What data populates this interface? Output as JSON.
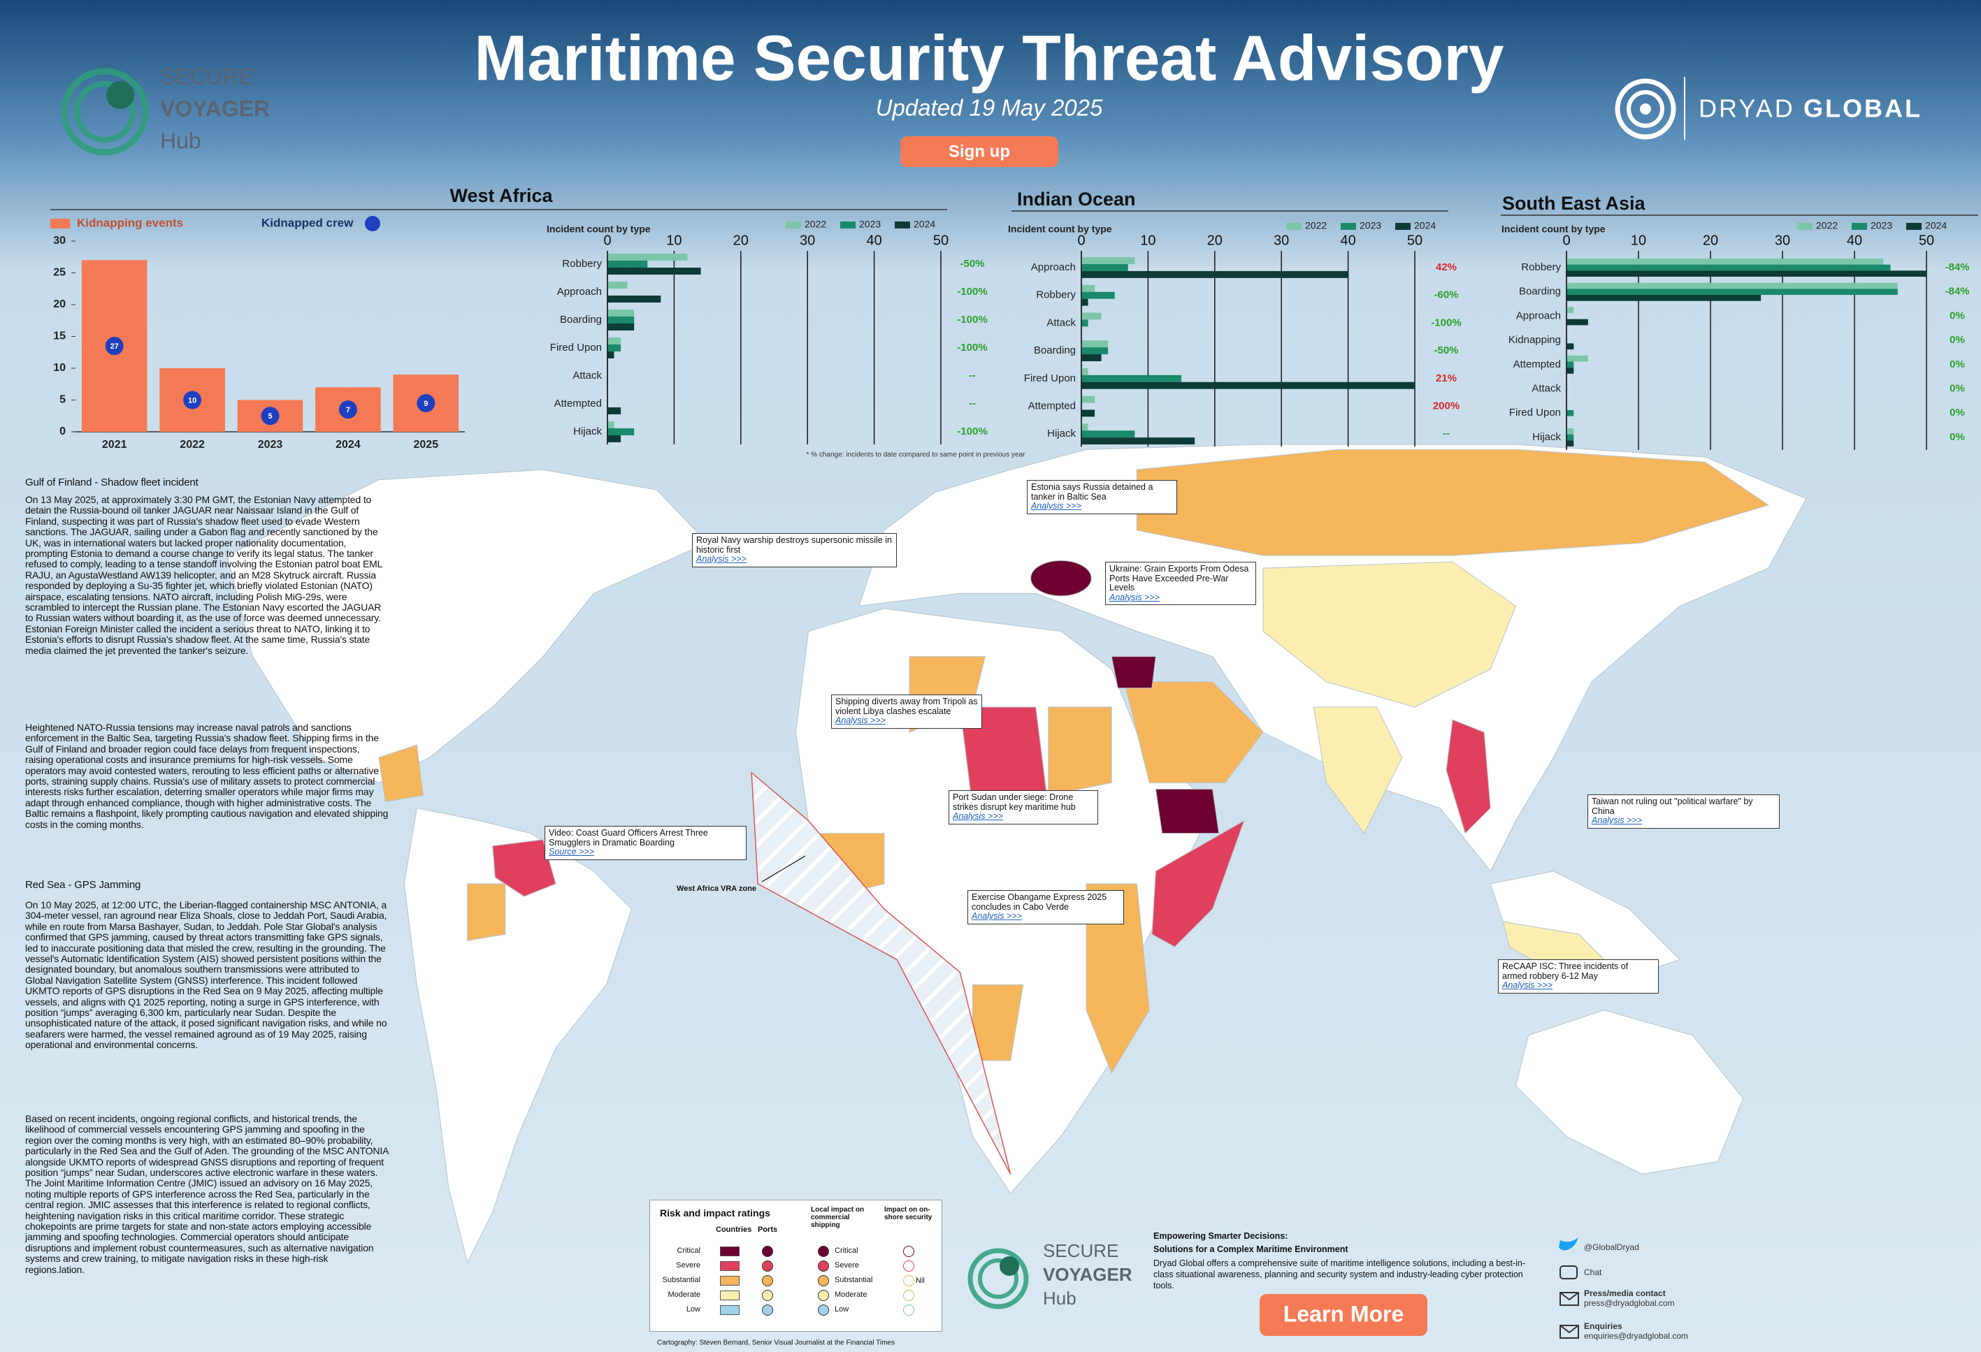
{
  "header": {
    "title": "Maritime Security Threat Advisory",
    "subtitle": "Updated 19 May 2025",
    "button": "Sign up"
  },
  "logos": {
    "secure": "SECURE",
    "voyager": "VOYAGER",
    "hub": "Hub",
    "dryad": "DRYAD",
    "global": "GLOBAL"
  },
  "chart_data": [
    {
      "type": "bar",
      "title": "West Africa",
      "categories": [
        "2021",
        "2022",
        "2023",
        "2024",
        "2025"
      ],
      "series": [
        {
          "name": "Kidnapping events",
          "color": "#f47a55",
          "values": [
            27,
            10,
            5,
            7,
            9
          ]
        },
        {
          "name": "Kidnapped crew",
          "color": "#1f3fbf",
          "marker": "dot",
          "values": [
            27,
            10,
            5,
            7,
            9
          ]
        }
      ],
      "ylim": [
        0,
        30
      ],
      "yticks": [
        0,
        5,
        10,
        15,
        20,
        25,
        30
      ],
      "grid": false
    },
    {
      "type": "hbar",
      "xlabel": "Incident count by type",
      "categories": [
        "Robbery",
        "Approach",
        "Boarding",
        "Fired Upon",
        "Attack",
        "Attempted",
        "Hijack"
      ],
      "series": [
        {
          "name": "2022",
          "color": "#7cc6a8",
          "values": [
            12,
            3,
            4,
            2,
            0,
            0,
            1
          ]
        },
        {
          "name": "2023",
          "color": "#1a8a6a",
          "values": [
            6,
            0,
            4,
            2,
            0,
            0,
            4
          ]
        },
        {
          "name": "2024",
          "color": "#0d3b36",
          "values": [
            14,
            8,
            4,
            1,
            0,
            2,
            2
          ]
        }
      ],
      "changes": [
        "-50%",
        "-100%",
        "-100%",
        "-100%",
        "--",
        "--",
        "-100%"
      ],
      "change_colors": [
        "#2ca02c",
        "#2ca02c",
        "#2ca02c",
        "#2ca02c",
        "#2ca02c",
        "#2ca02c",
        "#2ca02c"
      ],
      "xlim": [
        0,
        50
      ],
      "xticks": [
        0,
        10,
        20,
        30,
        40,
        50
      ],
      "grid": true
    },
    {
      "type": "hbar",
      "title": "Indian Ocean",
      "xlabel": "Incident count by type",
      "categories": [
        "Approach",
        "Robbery",
        "Attack",
        "Boarding",
        "Fired Upon",
        "Attempted",
        "Hijack"
      ],
      "series": [
        {
          "name": "2022",
          "color": "#7cc6a8",
          "values": [
            8,
            2,
            3,
            4,
            1,
            2,
            1
          ]
        },
        {
          "name": "2023",
          "color": "#1a8a6a",
          "values": [
            7,
            5,
            1,
            4,
            15,
            0,
            8
          ]
        },
        {
          "name": "2024",
          "color": "#0d3b36",
          "values": [
            40,
            1,
            0,
            3,
            50,
            2,
            17
          ]
        }
      ],
      "changes": [
        "42%",
        "-60%",
        "-100%",
        "-50%",
        "21%",
        "200%",
        "--"
      ],
      "change_colors": [
        "#d62728",
        "#2ca02c",
        "#2ca02c",
        "#2ca02c",
        "#d62728",
        "#d62728",
        "#2ca02c"
      ],
      "xlim": [
        0,
        50
      ],
      "xticks": [
        0,
        10,
        20,
        30,
        40,
        50
      ],
      "grid": true
    },
    {
      "type": "hbar",
      "title": "South East Asia",
      "xlabel": "Incident count by type",
      "categories": [
        "Robbery",
        "Boarding",
        "Approach",
        "Kidnapping",
        "Attempted",
        "Attack",
        "Fired Upon",
        "Hijack"
      ],
      "series": [
        {
          "name": "2022",
          "color": "#7cc6a8",
          "values": [
            44,
            46,
            1,
            0,
            3,
            0,
            0,
            1
          ]
        },
        {
          "name": "2023",
          "color": "#1a8a6a",
          "values": [
            45,
            46,
            0,
            0,
            1,
            0,
            1,
            1
          ]
        },
        {
          "name": "2024",
          "color": "#0d3b36",
          "values": [
            50,
            27,
            3,
            1,
            1,
            0,
            0,
            1
          ]
        }
      ],
      "changes": [
        "-84%",
        "-84%",
        "0%",
        "0%",
        "0%",
        "0%",
        "0%",
        "0%"
      ],
      "change_colors": [
        "#2ca02c",
        "#2ca02c",
        "#2ca02c",
        "#2ca02c",
        "#2ca02c",
        "#2ca02c",
        "#2ca02c",
        "#2ca02c"
      ],
      "xlim": [
        0,
        50
      ],
      "xticks": [
        0,
        10,
        20,
        30,
        40,
        50
      ],
      "grid": true
    }
  ],
  "footnote": "* % change: incidents to date compared to same point in previous year",
  "articles": [
    {
      "heading": "Gulf of Finland - Shadow fleet incident",
      "paragraphs": [
        "On 13 May 2025, at approximately 3:30 PM GMT, the Estonian Navy attempted to detain the Russia-bound oil tanker JAGUAR near Naissaar Island in the Gulf of Finland, suspecting it was part of Russia's shadow fleet used to evade Western sanctions. The JAGUAR, sailing under a Gabon flag and recently sanctioned by the UK, was in international waters but lacked proper nationality documentation, prompting Estonia to demand a course change to verify its legal status. The tanker refused to comply, leading to a tense standoff involving the Estonian patrol boat EML RAJU, an AgustaWestland AW139 helicopter, and an M28 Skytruck aircraft. Russia responded by deploying a Su-35 fighter jet, which briefly violated Estonian (NATO) airspace, escalating tensions. NATO aircraft, including Polish MiG-29s, were scrambled to intercept the Russian plane. The Estonian Navy escorted the JAGUAR to Russian waters without boarding it, as the use of force was deemed unnecessary. Estonian Foreign Minister called the incident a serious threat to NATO, linking it to Estonia's efforts to disrupt Russia's shadow fleet. At the same time, Russia's state media claimed the jet prevented the tanker's seizure.",
        "Heightened NATO-Russia tensions may increase naval patrols and sanctions enforcement in the Baltic Sea, targeting Russia's shadow fleet. Shipping firms in the Gulf of Finland and broader region could face delays from frequent inspections, raising operational costs and insurance premiums for high-risk vessels. Some operators may avoid contested waters, rerouting to less efficient paths or alternative ports, straining supply chains. Russia's use of military assets to protect commercial interests risks further escalation, deterring smaller operators while major firms may adapt through enhanced compliance, though with higher administrative costs. The Baltic remains a flashpoint, likely prompting cautious navigation and elevated shipping costs in the coming months."
      ]
    },
    {
      "heading": "Red Sea - GPS Jamming",
      "paragraphs": [
        "On 10 May 2025, at 12:00 UTC, the Liberian-flagged containership MSC ANTONIA, a 304-meter vessel, ran aground near Eliza Shoals, close to Jeddah Port, Saudi Arabia, while en route from Marsa Bashayer, Sudan, to Jeddah. Pole Star Global's analysis confirmed that GPS jamming, caused by threat actors transmitting fake GPS signals, led to inaccurate positioning data that misled the crew, resulting in the grounding. The vessel's Automatic Identification System (AIS) showed persistent positions within the designated boundary, but anomalous southern transmissions were attributed to Global Navigation Satellite System (GNSS) interference. This incident followed UKMTO reports of GPS disruptions in the Red Sea on 9 May 2025, affecting multiple vessels, and aligns with Q1 2025 reporting, noting a surge in GPS interference, with position “jumps” averaging 6,300 km, particularly near Sudan. Despite the unsophisticated nature of the attack, it posed significant navigation risks, and while no seafarers were harmed, the vessel remained aground as of 19 May 2025, raising operational and environmental concerns.",
        "Based on recent incidents, ongoing regional conflicts, and historical trends, the likelihood of commercial vessels encountering GPS jamming and spoofing in the region over the coming months is very high, with an estimated 80–90% probability, particularly in the Red Sea and the Gulf of Aden. The grounding of the MSC ANTONIA alongside UKMTO reports of widespread GNSS disruptions and reporting of frequent position “jumps” near Sudan, underscores active electronic warfare in these waters. The Joint Maritime Information Centre (JMIC) issued an advisory on 16 May 2025, noting multiple reports of GPS interference across the Red Sea, particularly in the central region. JMIC assesses that this interference is related to regional conflicts, heightening navigation risks in this critical maritime corridor. These strategic chokepoints are prime targets for state and non-state actors employing accessible jamming and spoofing technologies. Commercial operators should anticipate disruptions and implement robust countermeasures, such as alternative navigation systems and crew training, to mitigate navigation risks in these high-risk regions.lation."
      ]
    }
  ],
  "map": {
    "callouts": [
      {
        "text": "Estonia says Russia detained a tanker in Baltic Sea",
        "link": "Analysis >>>"
      },
      {
        "text": "Royal Navy warship destroys supersonic missile in historic first",
        "link": "Analysis >>>"
      },
      {
        "text": "Ukraine: Grain Exports From Odesa Ports Have Exceeded Pre-War Levels",
        "link": "Analysis >>>"
      },
      {
        "text": "Shipping diverts away from Tripoli as violent Libya clashes escalate",
        "link": "Analysis >>>"
      },
      {
        "text": "Port Sudan under siege: Drone strikes disrupt key maritime hub",
        "link": "Analysis >>>"
      },
      {
        "text": "Taiwan not ruling out \"political warfare\" by China",
        "link": "Analysis >>>"
      },
      {
        "text": "Video: Coast Guard Officers Arrest Three Smugglers in Dramatic Boarding",
        "link": "Source >>>"
      },
      {
        "text": "Exercise Obangame Express 2025 concludes in Cabo Verde",
        "link": "Analysis >>>"
      },
      {
        "text": "ReCAAP ISC: Three incidents of armed robbery 6-12 May",
        "link": "Analysis >>>"
      }
    ],
    "zone_label": "West Africa VRA zone"
  },
  "legend": {
    "title": "Risk and impact ratings",
    "countries": "Countries",
    "ports": "Ports",
    "local_impact": "Local impact on commercial shipping",
    "onshore": "Impact on on-shore security",
    "levels": [
      "Critical",
      "Severe",
      "Substantial",
      "Moderate",
      "Low"
    ],
    "nil": "Nil",
    "credit": "Cartography: Steven Bernard, Senior Visual Journalist at the Financial Times"
  },
  "footer": {
    "heading": "Empowering Smarter Decisions:",
    "subheading": "Solutions for a Complex Maritime Environment",
    "body": "Dryad Global offers a comprehensive suite of maritime intelligence solutions, including a best-in-class situational awareness, planning and security system and industry-leading cyber protection tools.",
    "button": "Learn More",
    "twitter": "@GlobalDryad",
    "chat": "Chat",
    "press_heading": "Press/media contact",
    "press_email": "press@dryadglobal.com",
    "enquiries_heading": "Enquiries",
    "enquiries_email": "enquiries@dryadglobal.com"
  }
}
